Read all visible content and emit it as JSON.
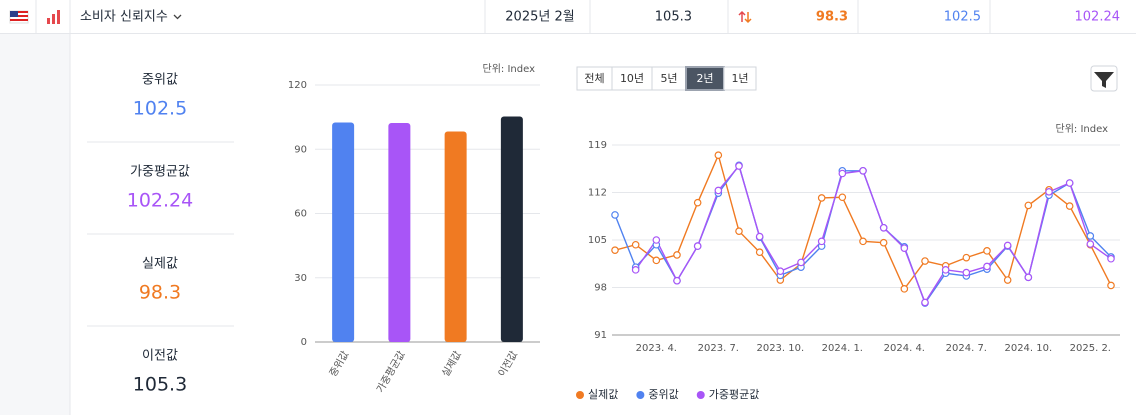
{
  "header": {
    "name": "소비자 신뢰지수",
    "date": "2025년 2월",
    "previous": "105.3",
    "actual": "98.3",
    "median": "102.5",
    "weighted": "102.24"
  },
  "stats": [
    {
      "label": "중위값",
      "value": "102.5",
      "color": "#5082f0"
    },
    {
      "label": "가중평균값",
      "value": "102.24",
      "color": "#a855f7"
    },
    {
      "label": "실제값",
      "value": "98.3",
      "color": "#f07a22"
    },
    {
      "label": "이전값",
      "value": "105.3",
      "color": "#1f2937"
    }
  ],
  "range_buttons": [
    "전체",
    "10년",
    "5년",
    "2년",
    "1년"
  ],
  "active_button": 3,
  "chart_data": [
    {
      "type": "bar",
      "unit_label": "단위: Index",
      "categories": [
        "중위값",
        "가중평균값",
        "실제값",
        "이전값"
      ],
      "values": [
        102.5,
        102.24,
        98.3,
        105.3
      ],
      "colors": [
        "#5082f0",
        "#a855f7",
        "#f07a22",
        "#1f2937"
      ],
      "ylim": [
        0,
        120
      ],
      "yticks": [
        0,
        30,
        60,
        90,
        120
      ],
      "grid": true
    },
    {
      "type": "line",
      "unit_label": "단위: Index",
      "x": [
        null,
        null,
        "2023. 4.",
        null,
        null,
        "2023. 7.",
        null,
        null,
        "2023. 10.",
        null,
        null,
        "2024. 1.",
        null,
        null,
        "2024. 4.",
        null,
        null,
        "2024. 7.",
        null,
        null,
        "2024. 10.",
        null,
        null,
        "2025. 2.",
        null
      ],
      "series": [
        {
          "name": "실제값",
          "color": "#f07a22",
          "values": [
            103.5,
            104.3,
            102,
            102.8,
            110.5,
            117.5,
            106.3,
            103.2,
            99.1,
            101.5,
            111.2,
            111.3,
            104.8,
            104.6,
            97.8,
            101.9,
            101.2,
            102.4,
            103.4,
            99.1,
            110.1,
            112.4,
            110,
            104.3,
            98.3
          ]
        },
        {
          "name": "중위값",
          "color": "#5082f0",
          "values": [
            108.7,
            101,
            104.3,
            99,
            104.1,
            111.9,
            116,
            105.4,
            99.8,
            101,
            104.1,
            115.2,
            115.2,
            106.8,
            104,
            95.7,
            100.1,
            99.7,
            100.7,
            104.1,
            99.5,
            111.6,
            113.4,
            105.6,
            102.5
          ]
        },
        {
          "name": "가중평균값",
          "color": "#a855f7",
          "values": [
            null,
            100.6,
            105,
            99,
            104.1,
            112.3,
            115.9,
            105.5,
            100.4,
            101.7,
            104.8,
            114.8,
            115.2,
            106.8,
            103.8,
            95.8,
            100.6,
            100.2,
            101.1,
            104.2,
            99.5,
            112.1,
            113.4,
            104.4,
            102.24
          ]
        }
      ],
      "ylim": [
        91,
        119
      ],
      "yticks": [
        91,
        98,
        105,
        112,
        119
      ],
      "grid": true
    }
  ]
}
